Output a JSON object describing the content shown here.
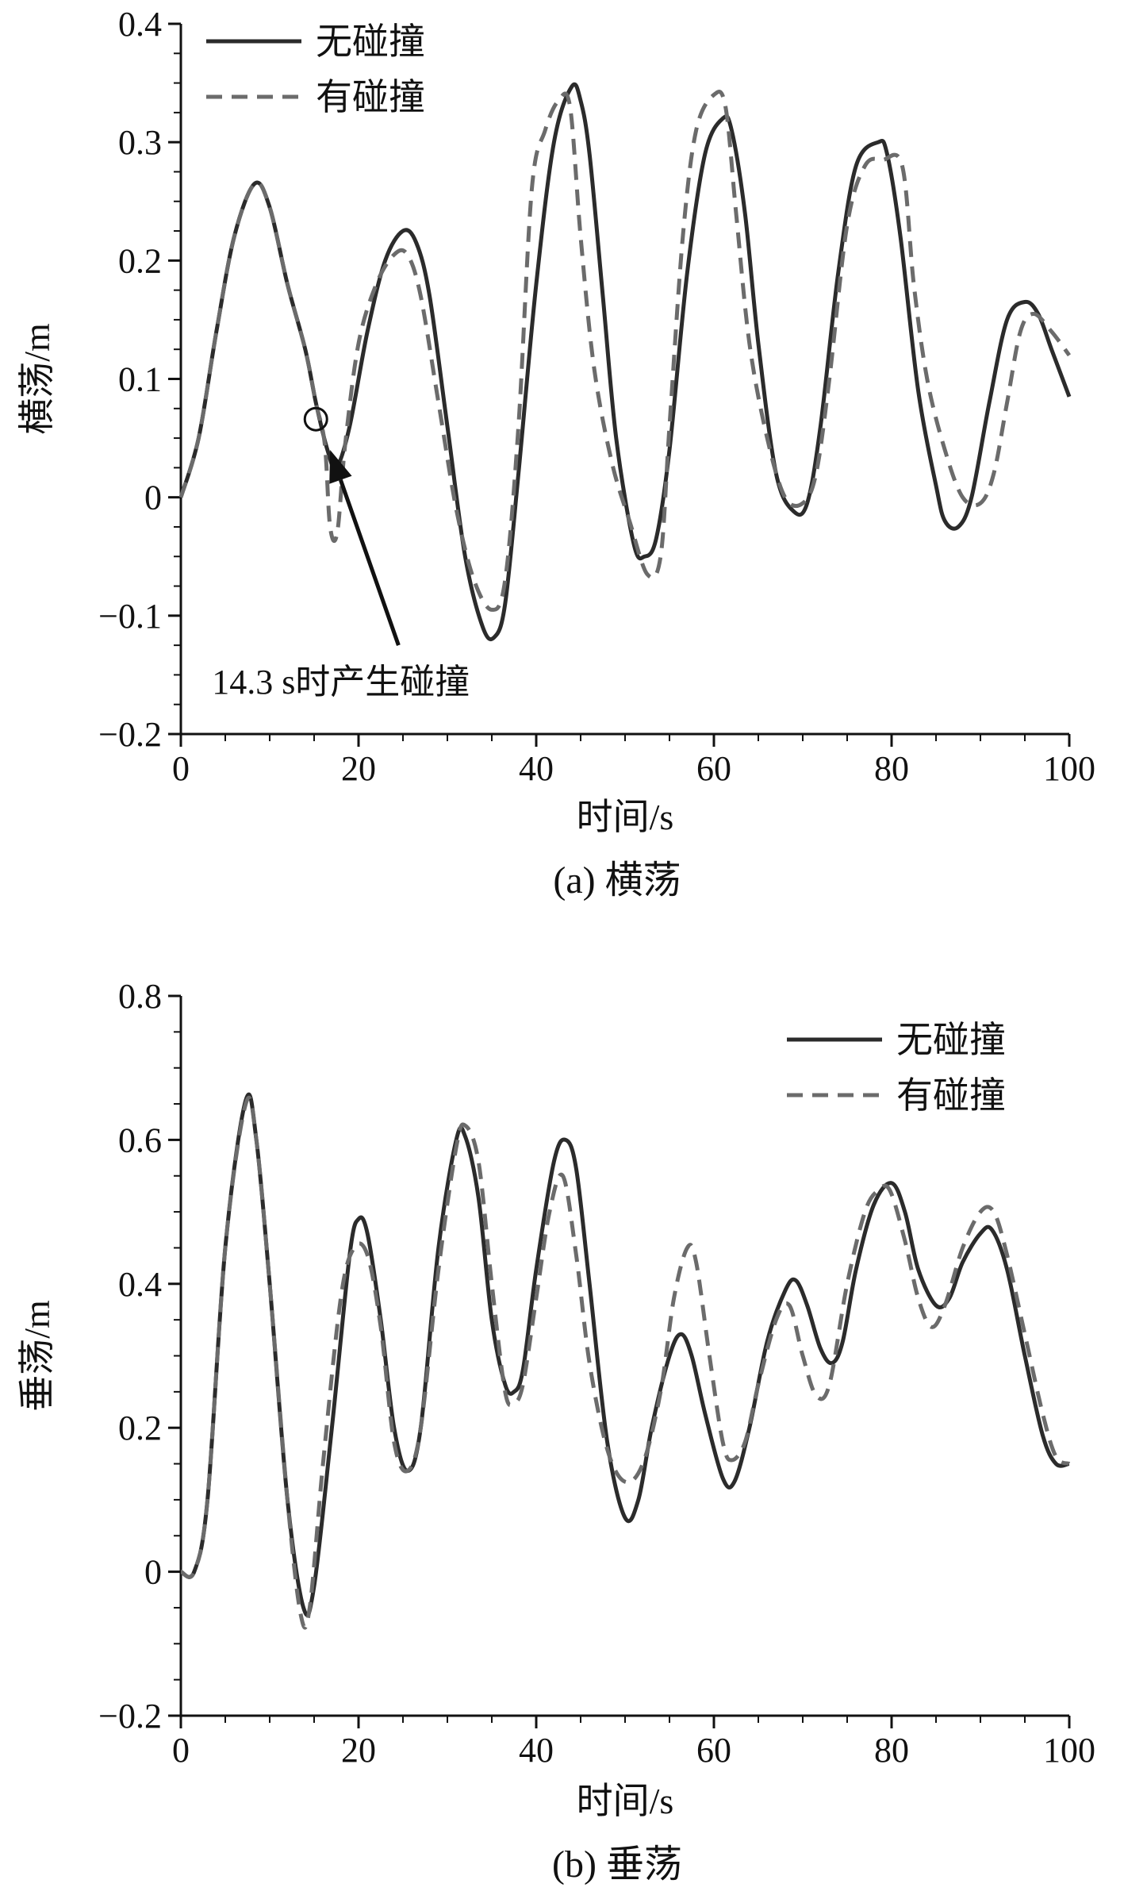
{
  "colors": {
    "no_collision": "#2b2b2b",
    "with_collision": "#6b6b6b",
    "axis": "#111111"
  },
  "chart_data": [
    {
      "type": "line",
      "caption": "(a) 横荡",
      "xlabel": "时间/s",
      "ylabel": "横荡/m",
      "xlim": [
        0,
        100
      ],
      "ylim": [
        -0.2,
        0.4
      ],
      "xticks": [
        "0",
        "20",
        "40",
        "60",
        "80",
        "100"
      ],
      "yticks": [
        "−0.2",
        "−0.1",
        "0",
        "0.1",
        "0.2",
        "0.3",
        "0.4"
      ],
      "legend_position": "top-left",
      "annotation": {
        "text": "14.3 s时产生碰撞",
        "point": [
          15.2,
          0.066
        ],
        "arrow_tip": [
          16.8,
          0.04
        ],
        "arrow_tail": [
          24.5,
          -0.125
        ],
        "text_anchor": [
          3.5,
          -0.155
        ]
      },
      "series": [
        {
          "name": "无碰撞",
          "style": "solid",
          "points": [
            [
              0,
              0
            ],
            [
              2,
              0.05
            ],
            [
              4,
              0.14
            ],
            [
              6,
              0.22
            ],
            [
              8.3,
              0.265
            ],
            [
              10,
              0.245
            ],
            [
              12,
              0.18
            ],
            [
              14,
              0.125
            ],
            [
              15.2,
              0.08
            ],
            [
              16.5,
              0.04
            ],
            [
              17.5,
              0.025
            ],
            [
              19,
              0.06
            ],
            [
              21,
              0.14
            ],
            [
              23,
              0.2
            ],
            [
              25,
              0.225
            ],
            [
              26.5,
              0.215
            ],
            [
              28,
              0.17
            ],
            [
              30,
              0.06
            ],
            [
              32,
              -0.05
            ],
            [
              34,
              -0.11
            ],
            [
              35.3,
              -0.118
            ],
            [
              36.5,
              -0.09
            ],
            [
              38,
              0.02
            ],
            [
              40,
              0.18
            ],
            [
              42,
              0.3
            ],
            [
              44,
              0.347
            ],
            [
              45,
              0.335
            ],
            [
              46,
              0.29
            ],
            [
              47.5,
              0.17
            ],
            [
              49,
              0.05
            ],
            [
              51,
              -0.04
            ],
            [
              52.2,
              -0.05
            ],
            [
              53.5,
              -0.035
            ],
            [
              55,
              0.04
            ],
            [
              57,
              0.19
            ],
            [
              59,
              0.29
            ],
            [
              61,
              0.32
            ],
            [
              62,
              0.31
            ],
            [
              63.5,
              0.24
            ],
            [
              65,
              0.13
            ],
            [
              67,
              0.02
            ],
            [
              69,
              -0.012
            ],
            [
              70.5,
              -0.005
            ],
            [
              72,
              0.06
            ],
            [
              74,
              0.19
            ],
            [
              76,
              0.28
            ],
            [
              78.5,
              0.3
            ],
            [
              79.5,
              0.29
            ],
            [
              81,
              0.22
            ],
            [
              83,
              0.09
            ],
            [
              85,
              0.01
            ],
            [
              86,
              -0.02
            ],
            [
              87.5,
              -0.025
            ],
            [
              89,
              0.0
            ],
            [
              91,
              0.08
            ],
            [
              93,
              0.15
            ],
            [
              95,
              0.165
            ],
            [
              96.5,
              0.155
            ],
            [
              98,
              0.125
            ],
            [
              100,
              0.085
            ]
          ]
        },
        {
          "name": "有碰撞",
          "style": "dashed",
          "points": [
            [
              0,
              0
            ],
            [
              2,
              0.05
            ],
            [
              4,
              0.14
            ],
            [
              6,
              0.22
            ],
            [
              8.3,
              0.265
            ],
            [
              10,
              0.245
            ],
            [
              12,
              0.18
            ],
            [
              14,
              0.125
            ],
            [
              15.2,
              0.08
            ],
            [
              16.2,
              0.045
            ],
            [
              16.8,
              -0.025
            ],
            [
              17.6,
              -0.03
            ],
            [
              18.5,
              0.045
            ],
            [
              20,
              0.13
            ],
            [
              22,
              0.18
            ],
            [
              24,
              0.205
            ],
            [
              25.5,
              0.205
            ],
            [
              27,
              0.17
            ],
            [
              29,
              0.08
            ],
            [
              31,
              -0.01
            ],
            [
              33,
              -0.07
            ],
            [
              35,
              -0.095
            ],
            [
              36.5,
              -0.07
            ],
            [
              38,
              0.06
            ],
            [
              39.5,
              0.26
            ],
            [
              41,
              0.31
            ],
            [
              42.5,
              0.335
            ],
            [
              43.8,
              0.33
            ],
            [
              45,
              0.22
            ],
            [
              46.5,
              0.11
            ],
            [
              48.5,
              0.03
            ],
            [
              50.5,
              -0.02
            ],
            [
              52.5,
              -0.065
            ],
            [
              54,
              -0.05
            ],
            [
              55,
              0.06
            ],
            [
              56.5,
              0.22
            ],
            [
              58,
              0.31
            ],
            [
              60,
              0.34
            ],
            [
              61.3,
              0.33
            ],
            [
              62.5,
              0.24
            ],
            [
              64,
              0.13
            ],
            [
              66,
              0.05
            ],
            [
              68,
              0.0
            ],
            [
              70,
              -0.005
            ],
            [
              71.5,
              0.02
            ],
            [
              73,
              0.1
            ],
            [
              75,
              0.23
            ],
            [
              77,
              0.28
            ],
            [
              79,
              0.285
            ],
            [
              81.2,
              0.28
            ],
            [
              82.5,
              0.18
            ],
            [
              84,
              0.1
            ],
            [
              86,
              0.04
            ],
            [
              88,
              0.0
            ],
            [
              90,
              -0.005
            ],
            [
              91.5,
              0.02
            ],
            [
              93,
              0.08
            ],
            [
              94.5,
              0.14
            ],
            [
              96,
              0.155
            ],
            [
              98,
              0.14
            ],
            [
              100,
              0.12
            ]
          ]
        }
      ]
    },
    {
      "type": "line",
      "caption": "(b) 垂荡",
      "xlabel": "时间/s",
      "ylabel": "垂荡/m",
      "xlim": [
        0,
        100
      ],
      "ylim": [
        -0.2,
        0.8
      ],
      "xticks": [
        "0",
        "20",
        "40",
        "60",
        "80",
        "100"
      ],
      "yticks": [
        "−0.2",
        "0",
        "0.2",
        "0.4",
        "0.6",
        "0.8"
      ],
      "legend_position": "top-right",
      "series": [
        {
          "name": "无碰撞",
          "style": "solid",
          "points": [
            [
              0,
              0
            ],
            [
              1.5,
              0.0
            ],
            [
              3,
              0.1
            ],
            [
              5,
              0.45
            ],
            [
              7.3,
              0.655
            ],
            [
              8.5,
              0.6
            ],
            [
              10,
              0.4
            ],
            [
              12,
              0.1
            ],
            [
              13.8,
              -0.05
            ],
            [
              15,
              -0.02
            ],
            [
              17,
              0.2
            ],
            [
              19,
              0.44
            ],
            [
              20,
              0.49
            ],
            [
              21,
              0.47
            ],
            [
              22.5,
              0.35
            ],
            [
              24,
              0.2
            ],
            [
              25.5,
              0.14
            ],
            [
              27,
              0.2
            ],
            [
              29,
              0.45
            ],
            [
              31,
              0.6
            ],
            [
              32,
              0.605
            ],
            [
              33.5,
              0.52
            ],
            [
              35,
              0.35
            ],
            [
              36.5,
              0.26
            ],
            [
              37.5,
              0.25
            ],
            [
              38.5,
              0.28
            ],
            [
              40,
              0.42
            ],
            [
              42,
              0.57
            ],
            [
              43.3,
              0.6
            ],
            [
              44.5,
              0.56
            ],
            [
              46,
              0.4
            ],
            [
              48,
              0.18
            ],
            [
              50,
              0.075
            ],
            [
              51.5,
              0.1
            ],
            [
              53,
              0.2
            ],
            [
              55,
              0.3
            ],
            [
              56.3,
              0.33
            ],
            [
              57.5,
              0.3
            ],
            [
              59,
              0.22
            ],
            [
              61,
              0.13
            ],
            [
              62.3,
              0.125
            ],
            [
              64,
              0.2
            ],
            [
              66,
              0.32
            ],
            [
              68,
              0.39
            ],
            [
              69.2,
              0.405
            ],
            [
              70.5,
              0.37
            ],
            [
              72,
              0.31
            ],
            [
              73.3,
              0.29
            ],
            [
              74.5,
              0.32
            ],
            [
              76,
              0.42
            ],
            [
              78,
              0.51
            ],
            [
              80,
              0.54
            ],
            [
              81.5,
              0.5
            ],
            [
              83,
              0.42
            ],
            [
              85,
              0.37
            ],
            [
              86.5,
              0.38
            ],
            [
              88,
              0.43
            ],
            [
              90,
              0.47
            ],
            [
              91.3,
              0.475
            ],
            [
              93,
              0.42
            ],
            [
              95,
              0.3
            ],
            [
              97,
              0.19
            ],
            [
              98.5,
              0.15
            ],
            [
              100,
              0.15
            ]
          ]
        },
        {
          "name": "有碰撞",
          "style": "dashed",
          "points": [
            [
              0,
              0
            ],
            [
              1.5,
              0.0
            ],
            [
              3,
              0.1
            ],
            [
              5,
              0.45
            ],
            [
              7.3,
              0.65
            ],
            [
              8.5,
              0.6
            ],
            [
              10,
              0.4
            ],
            [
              12,
              0.1
            ],
            [
              13.5,
              -0.06
            ],
            [
              14.5,
              -0.05
            ],
            [
              16,
              0.15
            ],
            [
              18,
              0.38
            ],
            [
              19.5,
              0.45
            ],
            [
              21,
              0.44
            ],
            [
              22.5,
              0.34
            ],
            [
              24,
              0.18
            ],
            [
              25.5,
              0.14
            ],
            [
              27,
              0.2
            ],
            [
              29,
              0.42
            ],
            [
              31,
              0.59
            ],
            [
              32,
              0.62
            ],
            [
              33.5,
              0.57
            ],
            [
              35,
              0.4
            ],
            [
              36.5,
              0.25
            ],
            [
              37.5,
              0.235
            ],
            [
              38.5,
              0.26
            ],
            [
              40,
              0.38
            ],
            [
              41.5,
              0.5
            ],
            [
              43,
              0.55
            ],
            [
              44.5,
              0.44
            ],
            [
              46,
              0.29
            ],
            [
              48,
              0.17
            ],
            [
              50,
              0.125
            ],
            [
              52,
              0.15
            ],
            [
              54,
              0.25
            ],
            [
              55.5,
              0.38
            ],
            [
              57,
              0.45
            ],
            [
              58,
              0.43
            ],
            [
              59.5,
              0.3
            ],
            [
              61,
              0.18
            ],
            [
              62,
              0.155
            ],
            [
              63.5,
              0.18
            ],
            [
              65,
              0.26
            ],
            [
              67,
              0.35
            ],
            [
              68.5,
              0.37
            ],
            [
              70,
              0.3
            ],
            [
              71.5,
              0.245
            ],
            [
              73,
              0.26
            ],
            [
              75,
              0.4
            ],
            [
              77,
              0.5
            ],
            [
              78.5,
              0.53
            ],
            [
              79.8,
              0.53
            ],
            [
              81.5,
              0.46
            ],
            [
              83,
              0.38
            ],
            [
              84.5,
              0.34
            ],
            [
              86,
              0.37
            ],
            [
              88,
              0.45
            ],
            [
              90,
              0.5
            ],
            [
              91.5,
              0.5
            ],
            [
              93,
              0.44
            ],
            [
              95,
              0.33
            ],
            [
              97,
              0.22
            ],
            [
              98.5,
              0.16
            ],
            [
              100,
              0.15
            ]
          ]
        }
      ]
    }
  ]
}
